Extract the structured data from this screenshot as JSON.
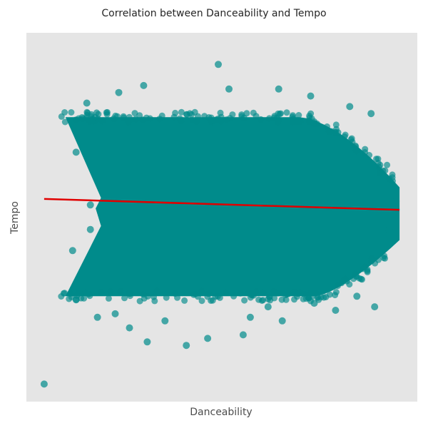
{
  "chart_data": {
    "type": "scatter",
    "title": "Correlation between Danceability and Tempo",
    "xlabel": "Danceability",
    "ylabel": "Tempo",
    "xlim": [
      -0.05,
      1.05
    ],
    "ylim": [
      -0.05,
      1.0
    ],
    "grid": false,
    "legend": "none",
    "ticks_visible": false,
    "colors": {
      "background": "#e5e5e5",
      "points": "#008b8b",
      "trend": "#e00000"
    },
    "series": [
      {
        "kind": "scatter",
        "approx_point_count": 100000,
        "x_range": [
          0.0,
          1.0
        ],
        "y_main_range": [
          0.22,
          0.78
        ],
        "points": [
          [
            0.0,
            0.0
          ],
          [
            0.49,
            0.91
          ],
          [
            0.28,
            0.85
          ],
          [
            0.52,
            0.84
          ],
          [
            0.66,
            0.84
          ],
          [
            0.21,
            0.83
          ],
          [
            0.75,
            0.82
          ],
          [
            0.12,
            0.8
          ],
          [
            0.86,
            0.79
          ],
          [
            0.92,
            0.77
          ],
          [
            0.09,
            0.66
          ],
          [
            0.13,
            0.51
          ],
          [
            0.13,
            0.44
          ],
          [
            0.08,
            0.38
          ],
          [
            0.09,
            0.24
          ],
          [
            0.2,
            0.2
          ],
          [
            0.29,
            0.12
          ],
          [
            0.34,
            0.18
          ],
          [
            0.4,
            0.11
          ],
          [
            0.46,
            0.13
          ],
          [
            0.56,
            0.14
          ],
          [
            0.63,
            0.22
          ],
          [
            0.67,
            0.18
          ],
          [
            0.76,
            0.23
          ],
          [
            0.82,
            0.21
          ],
          [
            0.88,
            0.25
          ],
          [
            0.93,
            0.22
          ],
          [
            0.97,
            0.44
          ],
          [
            0.99,
            0.52
          ],
          [
            0.15,
            0.19
          ],
          [
            0.24,
            0.16
          ],
          [
            0.58,
            0.19
          ]
        ]
      },
      {
        "kind": "trend-line",
        "start": [
          0.0,
          0.527
        ],
        "end": [
          1.0,
          0.496
        ]
      }
    ]
  }
}
